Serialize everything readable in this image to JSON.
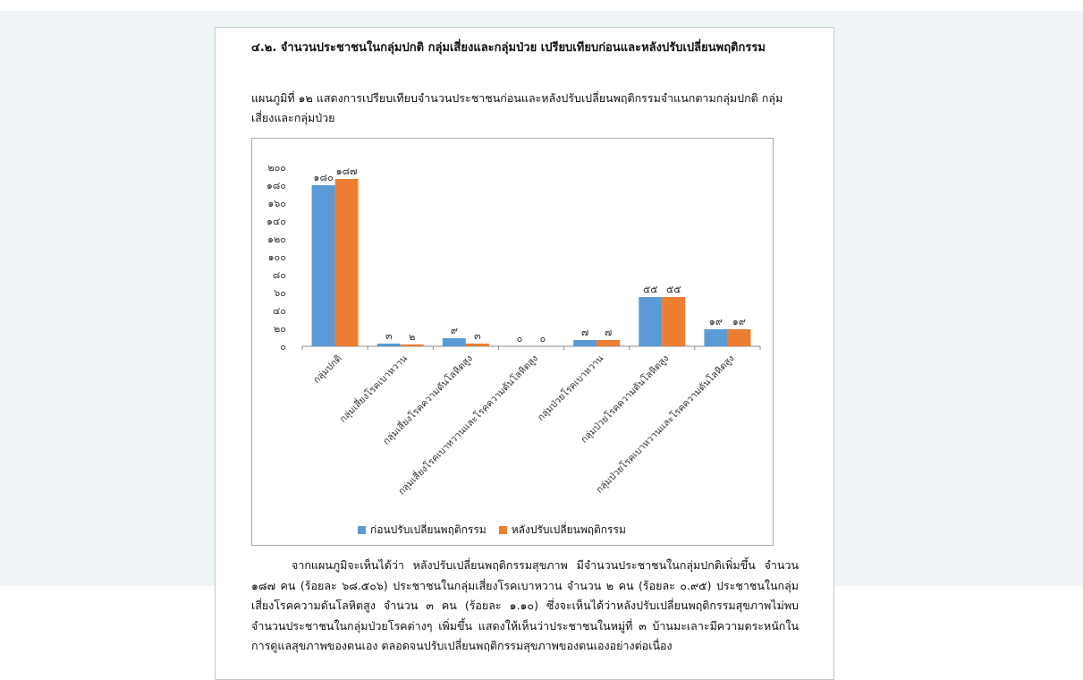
{
  "document": {
    "heading": "๔.๒. จำนวนประชาชนในกลุ่มปกติ  กลุ่มเสี่ยงและกลุ่มป่วย เปรียบเทียบก่อนและหลังปรับเปลี่ยนพฤติกรรม",
    "caption": "แผนภูมิที่ ๑๒  แสดงการเปรียบเทียบจำนวนประชาชนก่อนและหลังปรับเปลี่ยนพฤติกรรมจำแนกตามกลุ่มปกติ  กลุ่มเสี่ยงและกลุ่มป่วย",
    "body": "จากแผนภูมิจะเห็นได้ว่า  หลังปรับเปลี่ยนพฤติกรรมสุขภาพ  มีจำนวนประชาชนในกลุ่มปกติเพิ่มขึ้น จำนวน ๑๘๗ คน  (ร้อยละ ๖๘.๕๐๖)  ประชาชนในกลุ่มเสี่ยงโรคเบาหวาน  จำนวน ๒ คน (ร้อยละ ๐.๙๕) ประชาชนในกลุ่มเสี่ยงโรคความดันโลหิตสูง  จำนวน ๓ คน (ร้อยละ ๑.๑๐) ซึ่งจะเห็นได้ว่าหลังปรับเปลี่ยนพฤติกรรมสุขภาพไม่พบจำนวนประชาชนในกลุ่มป่วยโรคต่างๆ  เพิ่มขึ้น  แสดงให้เห็นว่าประชาชนในหมู่ที่ ๓ บ้านมะเลาะมีความตระหนักในการดูแลสุขภาพของตนเอง  ตลอดจนปรับเปลี่ยนพฤติกรรมสุขภาพของตนเองอย่างต่อเนื่อง"
  },
  "colors": {
    "before": "#5b9bd5",
    "after": "#ed7d31"
  },
  "chart_data": {
    "type": "bar",
    "categories": [
      "กลุ่มปกติ",
      "กลุ่มเสี่ยงโรคเบาหวาน",
      "กลุ่มเสี่ยงโรคความดันโลหิตสูง",
      "กลุ่มเสี่ยงโรคเบาหวานและโรคความดันโลหิตสูง",
      "กลุ่มป่วยโรคเบาหวาน",
      "กลุ่มป่วยโรคความดันโลหิตสูง",
      "กลุ่มป่วยโรคเบาหวานและโรคความดันโลหิตสูง"
    ],
    "series": [
      {
        "name": "ก่อนปรับเปลี่ยนพฤติกรรม",
        "values": [
          180,
          3,
          9,
          0,
          7,
          55,
          19
        ],
        "labels": [
          "๑๘๐",
          "๓",
          "๙",
          "๐",
          "๗",
          "๕๕",
          "๑๙"
        ]
      },
      {
        "name": "หลังปรับเปลี่ยนพฤติกรรม",
        "values": [
          187,
          2,
          3,
          0,
          7,
          55,
          19
        ],
        "labels": [
          "๑๘๗",
          "๒",
          "๓",
          "๐",
          "๗",
          "๕๕",
          "๑๙"
        ]
      }
    ],
    "yticks": [
      0,
      20,
      40,
      60,
      80,
      100,
      120,
      140,
      160,
      180,
      200
    ],
    "ytick_labels": [
      "๐",
      "๒๐",
      "๔๐",
      "๖๐",
      "๘๐",
      "๑๐๐",
      "๑๒๐",
      "๑๔๐",
      "๑๖๐",
      "๑๘๐",
      "๒๐๐"
    ],
    "ylim": [
      0,
      200
    ],
    "legend_position": "bottom",
    "grid": false
  }
}
